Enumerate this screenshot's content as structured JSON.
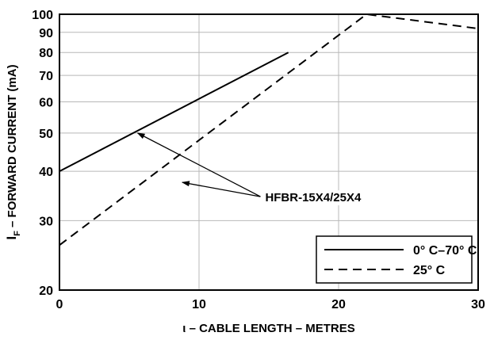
{
  "chart_data": {
    "type": "line",
    "title": "",
    "xlabel": "ι – CABLE LENGTH – METRES",
    "ylabel": "IF – FORWARD CURRENT (mA)",
    "ylabel_main": "I",
    "ylabel_sub": "F",
    "ylabel_rest": " – FORWARD CURRENT (mA)",
    "xlim": [
      0,
      30
    ],
    "ylim": [
      20,
      100
    ],
    "y_scale": "log",
    "grid": true,
    "x_ticks": [
      0,
      10,
      20,
      30
    ],
    "x_tick_labels": [
      "0",
      "10",
      "20",
      "30"
    ],
    "y_ticks": [
      20,
      30,
      40,
      50,
      60,
      70,
      80,
      90,
      100
    ],
    "y_tick_labels": [
      "20",
      "30",
      "40",
      "50",
      "60",
      "70",
      "80",
      "90",
      "100"
    ],
    "x_grid": [
      10,
      20
    ],
    "y_grid": [
      30,
      40,
      50,
      60,
      70,
      80,
      90
    ],
    "series": [
      {
        "name": "0° C–70° C",
        "style": "solid",
        "x": [
          0,
          16.4
        ],
        "y": [
          40,
          80
        ]
      },
      {
        "name": "25° C",
        "style": "dashed",
        "x": [
          0,
          22,
          30
        ],
        "y": [
          26,
          100,
          92
        ]
      }
    ],
    "annotation": {
      "text": "HFBR-15X4/25X4",
      "anchor": {
        "x": 14.4,
        "y": 34.5
      },
      "targets": [
        {
          "x": 5.6,
          "y": 50
        },
        {
          "x": 8.8,
          "y": 37.5
        }
      ]
    },
    "legend": {
      "position": "bottom-right"
    }
  }
}
